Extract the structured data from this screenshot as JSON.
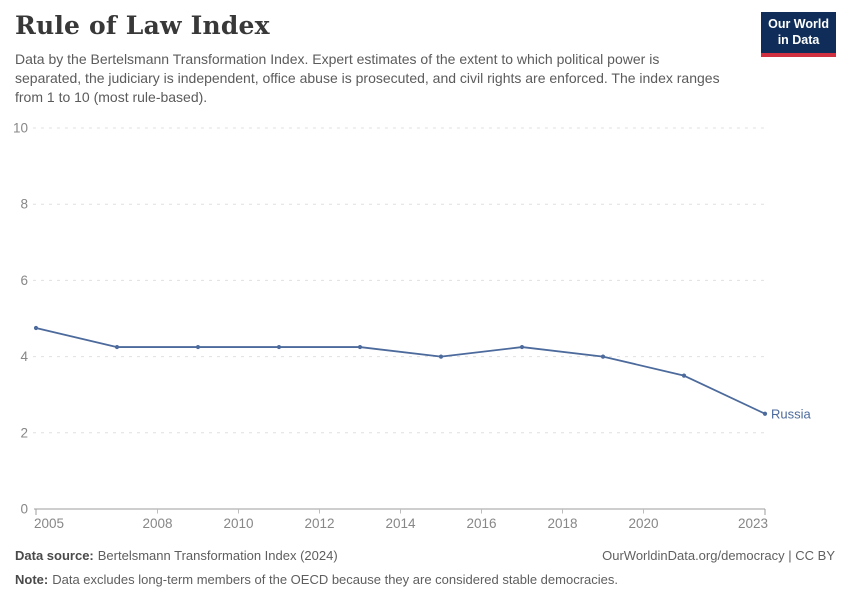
{
  "header": {
    "title": "Rule of Law Index",
    "subtitle": "Data by the Bertelsmann Transformation Index. Expert estimates of the extent to which political power is separated, the judiciary is independent, office abuse is prosecuted, and civil rights are enforced. The index ranges from 1 to 10 (most rule-based)."
  },
  "logo": {
    "line1": "Our World",
    "line2": "in Data",
    "bg_color": "#102d59",
    "accent_color": "#d0303f"
  },
  "chart_data": {
    "type": "line",
    "x": [
      2005,
      2007,
      2009,
      2011,
      2013,
      2015,
      2017,
      2019,
      2021,
      2023
    ],
    "series": [
      {
        "name": "Russia",
        "color": "#4c6a9c",
        "values": [
          4.75,
          4.25,
          4.25,
          4.25,
          4.25,
          4.0,
          4.25,
          4.0,
          3.5,
          2.5
        ]
      }
    ],
    "title": "Rule of Law Index",
    "xlabel": "",
    "ylabel": "",
    "ylim": [
      0,
      10
    ],
    "yticks": [
      0,
      2,
      4,
      6,
      8,
      10
    ],
    "xticks": [
      2005,
      2008,
      2010,
      2012,
      2014,
      2016,
      2018,
      2020,
      2023
    ],
    "grid": "horizontal dashed",
    "legend_position": "end-of-line"
  },
  "footer": {
    "data_source_label": "Data source:",
    "data_source_value": "Bertelsmann Transformation Index (2024)",
    "note_label": "Note:",
    "note_value": "Data excludes long-term members of the OECD because they are considered stable democracies.",
    "link": "OurWorldinData.org/democracy | CC BY"
  }
}
